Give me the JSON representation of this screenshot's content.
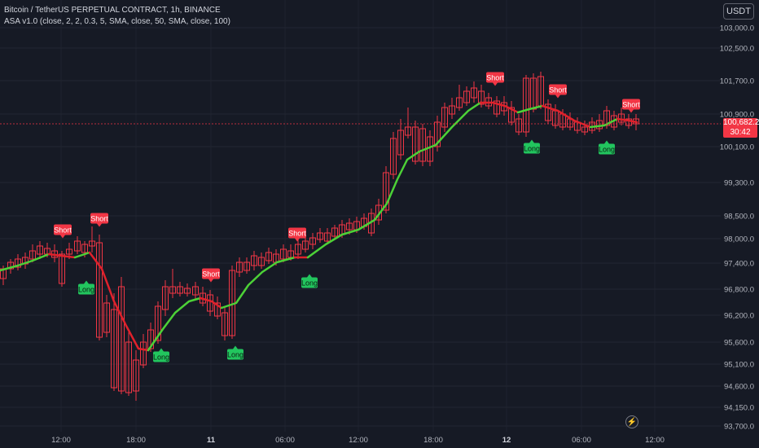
{
  "header": {
    "symbol_line": "Bitcoin / TetherUS PERPETUAL CONTRACT, 1h, BINANCE",
    "indicator_line": "ASA v1.0 (close, 2, 2, 0.3, 5, SMA, close, 50, SMA, close, 100)"
  },
  "currency_button": "USDT",
  "price_label": {
    "price": "100,682.2",
    "countdown": "30:42"
  },
  "price_axis_labels": [
    "103,000.0",
    "102,500.0",
    "101,700.0",
    "100,900.0",
    "100,100.0",
    "99,300.0",
    "98,500.0",
    "98,000.0",
    "97,400.0",
    "96,800.0",
    "96,200.0",
    "95,600.0",
    "95,100.0",
    "94,600.0",
    "94,150.0",
    "93,700.0"
  ],
  "time_axis_labels": [
    "12:00",
    "18:00",
    "11",
    "06:00",
    "12:00",
    "18:00",
    "12",
    "06:00",
    "12:00"
  ],
  "signals": [
    {
      "type": "Short",
      "label": "Short"
    },
    {
      "type": "Short",
      "label": "Short"
    },
    {
      "type": "Long",
      "label": "Long"
    },
    {
      "type": "Long",
      "label": "Long"
    },
    {
      "type": "Short",
      "label": "Short"
    },
    {
      "type": "Long",
      "label": "Long"
    },
    {
      "type": "Short",
      "label": "Short"
    },
    {
      "type": "Long",
      "label": "Long"
    },
    {
      "type": "Short",
      "label": "Short"
    },
    {
      "type": "Short",
      "label": "Short"
    },
    {
      "type": "Long",
      "label": "Long"
    },
    {
      "type": "Long",
      "label": "Long"
    },
    {
      "type": "Short",
      "label": "Short"
    }
  ],
  "icons": {
    "replay": "lightning-icon"
  },
  "colors": {
    "background": "#161a25",
    "up": "#089981",
    "down": "#f23645",
    "line_up": "#4cd137",
    "line_down": "#e0212b",
    "long_label": "#22c55e",
    "short_label": "#f23645"
  }
}
